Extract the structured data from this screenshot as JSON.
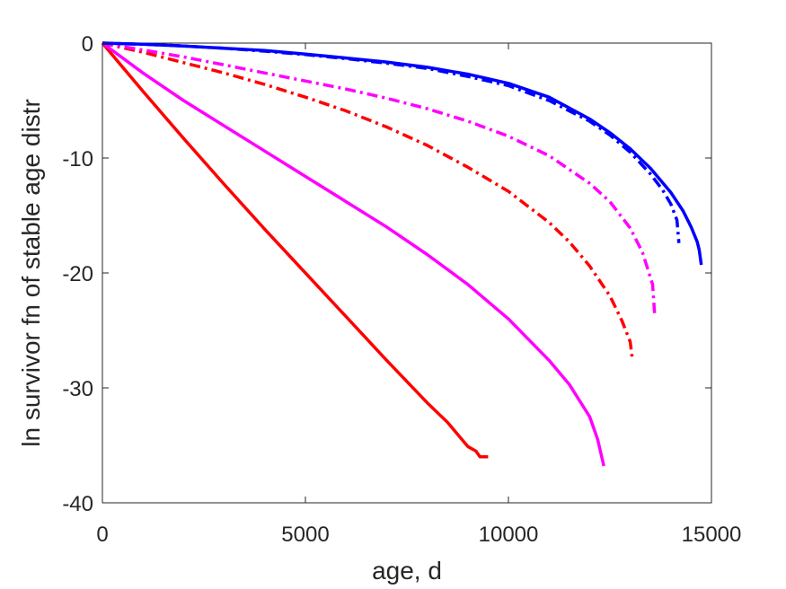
{
  "chart_data": {
    "type": "line",
    "title": "",
    "xlabel": "age, d",
    "ylabel": "ln survivor fn of stable age distr",
    "xlim": [
      0,
      15000
    ],
    "ylim": [
      -40,
      0
    ],
    "xticks": [
      0,
      5000,
      10000,
      15000
    ],
    "yticks": [
      0,
      -10,
      -20,
      -30,
      -40
    ],
    "grid": false,
    "legend": "none",
    "series": [
      {
        "color": "#ff0000",
        "dash": "solid",
        "x": [
          0,
          1000,
          2000,
          3000,
          4000,
          5000,
          6000,
          7000,
          8000,
          8500,
          9000,
          9200,
          9300,
          9500
        ],
        "y": [
          0,
          -4.2,
          -8.3,
          -12.3,
          -16.2,
          -20.0,
          -23.8,
          -27.6,
          -31.3,
          -33.0,
          -35.1,
          -35.5,
          -36.0,
          -36.0
        ]
      },
      {
        "color": "#ff00ff",
        "dash": "solid",
        "x": [
          0,
          1000,
          2000,
          3000,
          4000,
          5000,
          6000,
          7000,
          8000,
          9000,
          10000,
          11000,
          11500,
          12000,
          12200,
          12350
        ],
        "y": [
          0,
          -2.6,
          -5.0,
          -7.2,
          -9.4,
          -11.6,
          -13.8,
          -16.0,
          -18.4,
          -21.0,
          -24.0,
          -27.6,
          -29.7,
          -32.5,
          -34.5,
          -36.8
        ]
      },
      {
        "color": "#ff0000",
        "dash": "dashdot",
        "x": [
          0,
          1000,
          2000,
          3000,
          4000,
          5000,
          6000,
          7000,
          8000,
          9000,
          10000,
          11000,
          11500,
          12000,
          12500,
          12800,
          13000,
          13050
        ],
        "y": [
          0,
          -0.8,
          -1.7,
          -2.6,
          -3.6,
          -4.7,
          -5.9,
          -7.3,
          -8.9,
          -10.8,
          -12.9,
          -15.6,
          -17.3,
          -19.4,
          -22.0,
          -24.2,
          -26.0,
          -27.5
        ]
      },
      {
        "color": "#ff00ff",
        "dash": "dashdot",
        "x": [
          0,
          1000,
          2000,
          3000,
          4000,
          5000,
          6000,
          7000,
          8000,
          9000,
          10000,
          11000,
          12000,
          12500,
          13000,
          13300,
          13550,
          13600
        ],
        "y": [
          0,
          -0.6,
          -1.2,
          -1.9,
          -2.6,
          -3.3,
          -4.0,
          -4.8,
          -5.7,
          -6.8,
          -8.1,
          -9.8,
          -12.2,
          -13.8,
          -16.1,
          -18.2,
          -21.0,
          -23.5
        ]
      },
      {
        "color": "#0000ff",
        "dash": "dashdot",
        "x": [
          0,
          1000,
          2000,
          3000,
          4000,
          5000,
          6000,
          7000,
          8000,
          9000,
          10000,
          11000,
          12000,
          12500,
          13000,
          13500,
          13800,
          14000,
          14150,
          14200
        ],
        "y": [
          0,
          -0.1,
          -0.25,
          -0.45,
          -0.7,
          -1.0,
          -1.35,
          -1.75,
          -2.2,
          -2.9,
          -3.7,
          -5.0,
          -6.8,
          -8.0,
          -9.5,
          -11.4,
          -12.8,
          -14.0,
          -15.4,
          -17.4
        ]
      },
      {
        "color": "#0000ff",
        "dash": "solid",
        "x": [
          0,
          1000,
          2000,
          3000,
          4000,
          5000,
          6000,
          7000,
          8000,
          9000,
          10000,
          11000,
          12000,
          12500,
          13000,
          13500,
          14000,
          14300,
          14500,
          14650,
          14700,
          14750
        ],
        "y": [
          0,
          -0.1,
          -0.25,
          -0.45,
          -0.65,
          -0.95,
          -1.3,
          -1.65,
          -2.1,
          -2.7,
          -3.5,
          -4.7,
          -6.6,
          -7.8,
          -9.2,
          -10.9,
          -13.0,
          -14.6,
          -16.0,
          -17.3,
          -18.0,
          -19.3
        ]
      }
    ]
  }
}
